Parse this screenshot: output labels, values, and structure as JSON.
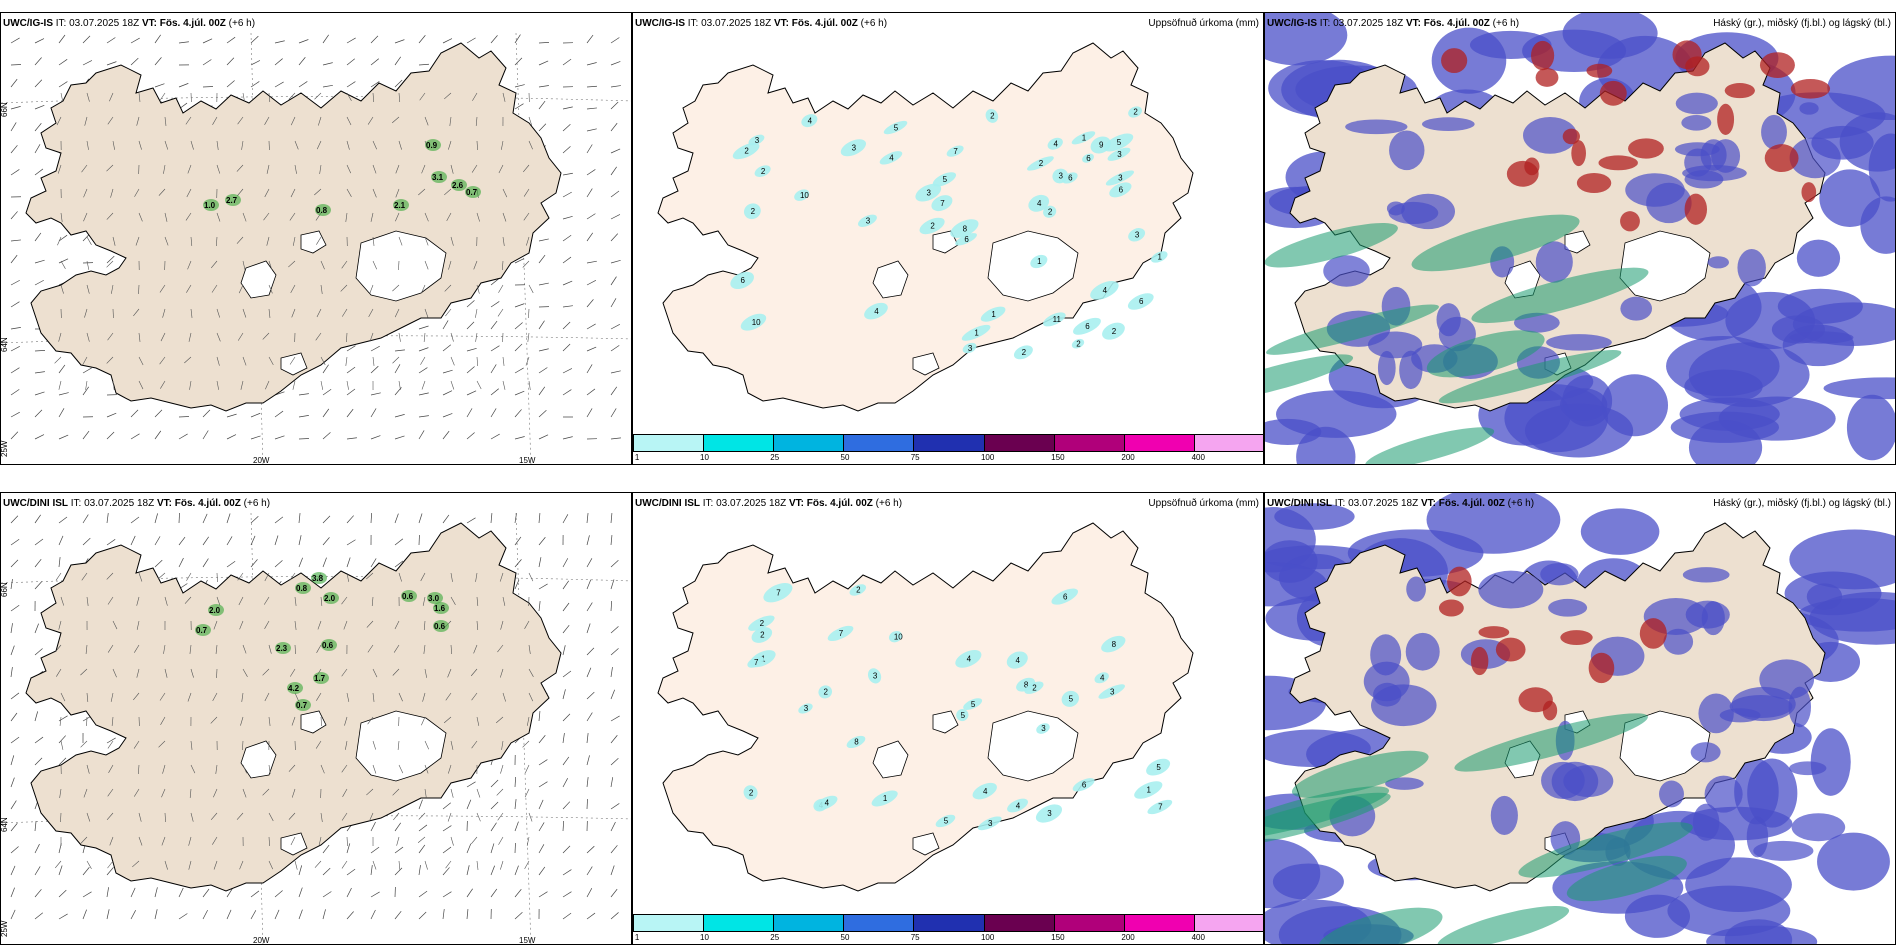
{
  "panels": {
    "top_wind": {
      "model": "UWC/IG-IS",
      "issue": "IT: 03.07.2025 18Z",
      "valid_label": "VT:",
      "valid": "Fös. 4.júl. 00Z",
      "lead": "(+6 h)"
    },
    "top_precip": {
      "model": "UWC/IG-IS",
      "issue": "IT: 03.07.2025 18Z",
      "valid_label": "VT:",
      "valid": "Fös. 4.júl. 00Z",
      "lead": "(+6 h)",
      "right_title": "Uppsöfnuð úrkoma (mm)"
    },
    "top_cloud": {
      "model": "UWC/IG-IS",
      "issue": "IT: 03.07.2025 18Z",
      "valid_label": "VT:",
      "valid": "Fös. 4.júl. 00Z",
      "lead": "(+6 h)",
      "right_title": "Háský (gr.), miðský (fj.bl.) og lágský (bl.)"
    },
    "bottom_wind": {
      "model": "UWC/DINI ISL",
      "issue": "IT: 03.07.2025 18Z",
      "valid_label": "VT:",
      "valid": "Fös. 4.júl. 00Z",
      "lead": "(+6 h)"
    },
    "bottom_precip": {
      "model": "UWC/DINI ISL",
      "issue": "IT: 03.07.2025 18Z",
      "valid_label": "VT:",
      "valid": "Fös. 4.júl. 00Z",
      "lead": "(+6 h)",
      "right_title": "Uppsöfnuð úrkoma (mm)"
    },
    "bottom_cloud": {
      "model": "UWC/DINI ISL",
      "issue": "IT: 03.07.2025 18Z",
      "valid_label": "VT:",
      "valid": "Fös. 4.júl. 00Z",
      "lead": "(+6 h)",
      "right_title": "Háský (gr.), miðský (fj.bl.) og lágský (bl.)"
    }
  },
  "axis_labels": {
    "lat66": "66N",
    "lat64": "64N",
    "lon25": "25W",
    "lon20": "20W",
    "lon15": "15W"
  },
  "legend": {
    "ticks": [
      "1",
      "10",
      "25",
      "50",
      "75",
      "100",
      "150",
      "200",
      "400"
    ],
    "colors": [
      "#b8f5f5",
      "#00e5e5",
      "#00b4e0",
      "#2f6de0",
      "#2030b0",
      "#6a0050",
      "#b0007a",
      "#f000b0",
      "#f5a5f0"
    ]
  },
  "colors": {
    "land": "#ede0d0",
    "precip_land": "#fdf0e6",
    "precip_cells": "#a8f0f0",
    "glacier": "#ffffff",
    "ocean": "#ffffff",
    "low_cloud": "#4a4fc8",
    "mid_cloud": "#1a9a70",
    "high_cloud": "#b02020",
    "wind_green": "#3aa83a"
  },
  "wind_values_top": [
    "0.9",
    "3.1",
    "2.6",
    "0.7",
    "1.0",
    "2.7",
    "0.8",
    "2.1"
  ],
  "wind_values_bottom": [
    "0.8",
    "3.8",
    "2.0",
    "0.6",
    "3.0",
    "1.6",
    "0.6",
    "2.0",
    "0.7",
    "2.3",
    "0.6",
    "1.7",
    "4.2",
    "0.7"
  ],
  "precip_values_top": [
    "2",
    "4",
    "9",
    "1",
    "5",
    "1",
    "3",
    "2",
    "3",
    "2",
    "6",
    "7",
    "4",
    "3",
    "4",
    "6",
    "2",
    "3",
    "4",
    "2",
    "6",
    "3",
    "1",
    "2",
    "6",
    "5",
    "2",
    "7",
    "10",
    "11",
    "6",
    "3",
    "3",
    "6",
    "2",
    "8",
    "4",
    "10",
    "5",
    "4",
    "6",
    "2",
    "2",
    "1",
    "3",
    "1",
    "3",
    "2"
  ],
  "precip_values_bottom": [
    "4",
    "2",
    "5",
    "3",
    "2",
    "6",
    "3",
    "7",
    "5",
    "4",
    "2",
    "8",
    "4",
    "7",
    "5",
    "4",
    "6",
    "8",
    "2",
    "3",
    "5",
    "5",
    "4",
    "1",
    "1",
    "4",
    "7",
    "4",
    "1",
    "7",
    "10",
    "8",
    "2",
    "3",
    "3",
    "3",
    "2"
  ]
}
